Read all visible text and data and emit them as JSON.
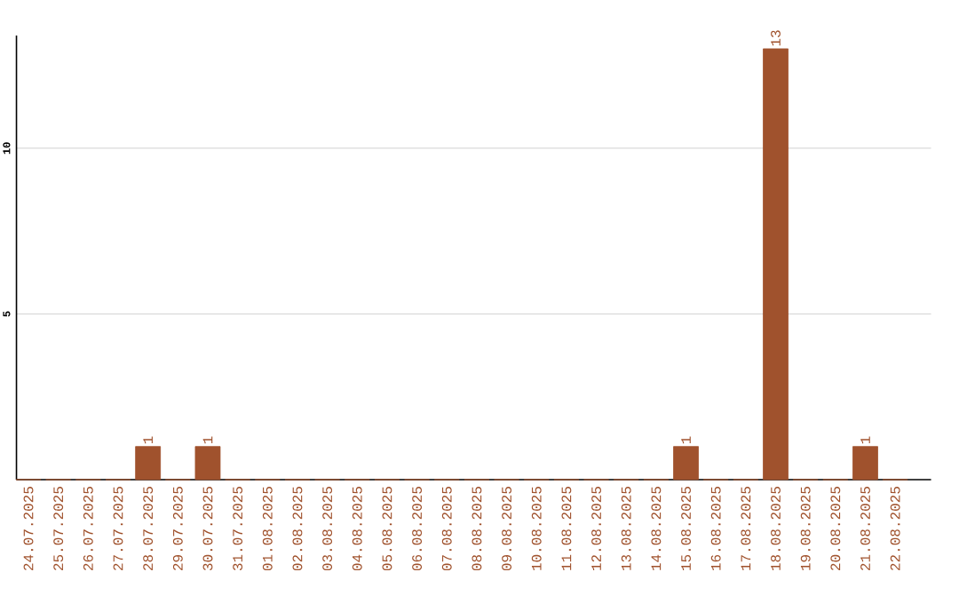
{
  "chart_data": {
    "type": "bar",
    "categories": [
      "24.07.2025",
      "25.07.2025",
      "26.07.2025",
      "27.07.2025",
      "28.07.2025",
      "29.07.2025",
      "30.07.2025",
      "31.07.2025",
      "01.08.2025",
      "02.08.2025",
      "03.08.2025",
      "04.08.2025",
      "05.08.2025",
      "06.08.2025",
      "07.08.2025",
      "08.08.2025",
      "09.08.2025",
      "10.08.2025",
      "11.08.2025",
      "12.08.2025",
      "13.08.2025",
      "14.08.2025",
      "15.08.2025",
      "16.08.2025",
      "17.08.2025",
      "18.08.2025",
      "19.08.2025",
      "20.08.2025",
      "21.08.2025",
      "22.08.2025"
    ],
    "values": [
      0,
      0,
      0,
      0,
      1,
      0,
      1,
      0,
      0,
      0,
      0,
      0,
      0,
      0,
      0,
      0,
      0,
      0,
      0,
      0,
      0,
      0,
      1,
      0,
      0,
      13,
      0,
      0,
      1,
      0
    ],
    "value_labels": [
      null,
      null,
      null,
      null,
      "1",
      null,
      "1",
      null,
      null,
      null,
      null,
      null,
      null,
      null,
      null,
      null,
      null,
      null,
      null,
      null,
      null,
      null,
      "1",
      null,
      null,
      "13",
      null,
      null,
      "1",
      null
    ],
    "color": "#a0522d",
    "ylim": [
      0,
      13.4
    ],
    "yticks": [
      5,
      10
    ],
    "grid": "y"
  }
}
